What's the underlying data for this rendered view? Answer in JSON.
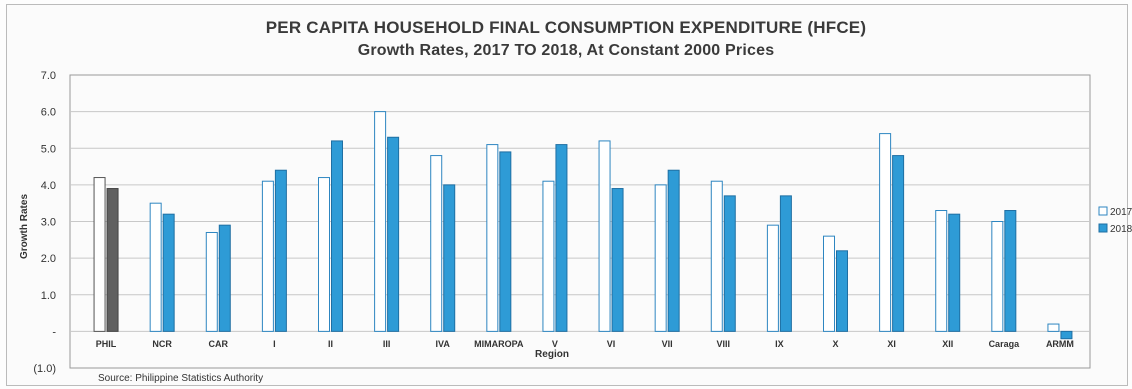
{
  "chart_data": {
    "type": "bar",
    "title": "PER CAPITA HOUSEHOLD FINAL CONSUMPTION EXPENDITURE (HFCE)",
    "subtitle": "Growth Rates, 2017 TO 2018, At Constant 2000 Prices",
    "xlabel": "Region",
    "ylabel": "Growth Rates",
    "ylim": [
      -1.0,
      7.0
    ],
    "yticks": [
      "7.0",
      "6.0",
      "5.0",
      "4.0",
      "3.0",
      "2.0",
      "1.0",
      "-",
      "(1.0)"
    ],
    "grid": true,
    "legend_position": "right",
    "categories": [
      "PHIL",
      "NCR",
      "CAR",
      "I",
      "II",
      "III",
      "IVA",
      "MIMAROPA",
      "V",
      "VI",
      "VII",
      "VIII",
      "IX",
      "X",
      "XI",
      "XII",
      "Caraga",
      "ARMM"
    ],
    "series": [
      {
        "name": "2017",
        "color": "#ffffff",
        "stroke": "#2e86c1",
        "values": [
          4.2,
          3.5,
          2.7,
          4.1,
          4.2,
          6.0,
          4.8,
          5.1,
          4.1,
          5.2,
          4.0,
          4.1,
          2.9,
          2.6,
          5.4,
          3.3,
          3.0,
          0.2
        ]
      },
      {
        "name": "2018",
        "color": "#2e9bd6",
        "stroke": "#1f6fa3",
        "values": [
          3.9,
          3.2,
          2.9,
          4.4,
          5.2,
          5.3,
          4.0,
          4.9,
          5.1,
          3.9,
          4.4,
          3.7,
          3.7,
          2.2,
          4.8,
          3.2,
          3.3,
          -0.2
        ]
      }
    ],
    "highlight_category": "PHIL",
    "highlight_colors": {
      "2017": "#ffffff",
      "2018": "#606060"
    }
  },
  "source": "Source: Philippine Statistics Authority"
}
